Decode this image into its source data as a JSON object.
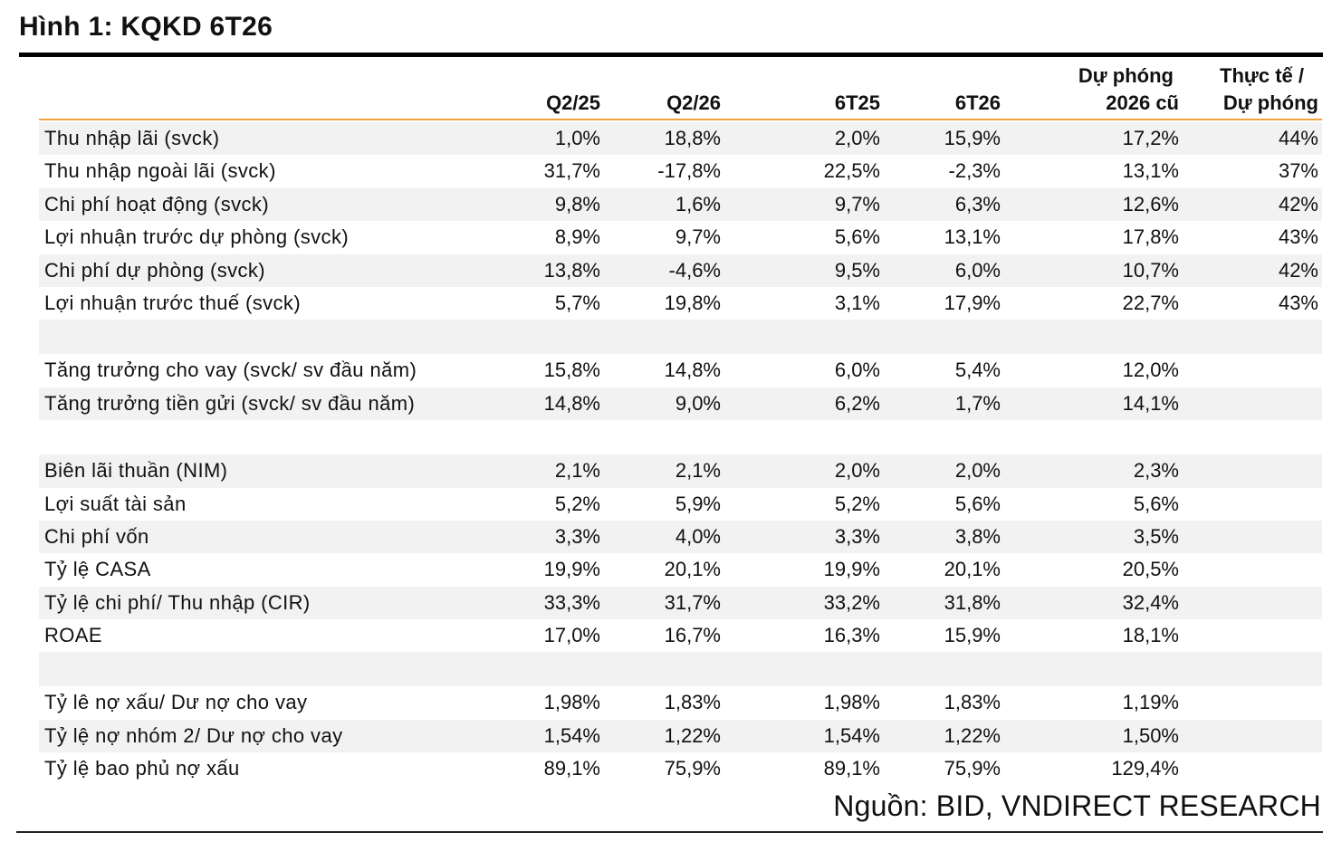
{
  "title": "Hình 1: KQKD 6T26",
  "headers": {
    "q225": "Q2/25",
    "q226": "Q2/26",
    "t625": "6T25",
    "t626": "6T26",
    "forecast_l1": "Dự phóng",
    "forecast_l2": "2026 cũ",
    "actual_l1": "Thực tế /",
    "actual_l2": "Dự phóng"
  },
  "rows": [
    {
      "label": "Thu nhập lãi (svck)",
      "v": [
        "1,0%",
        "18,8%",
        "2,0%",
        "15,9%",
        "17,2%",
        "44%"
      ]
    },
    {
      "label": "Thu nhập ngoài lãi (svck)",
      "v": [
        "31,7%",
        "-17,8%",
        "22,5%",
        "-2,3%",
        "13,1%",
        "37%"
      ]
    },
    {
      "label": "Chi phí hoạt động (svck)",
      "v": [
        "9,8%",
        "1,6%",
        "9,7%",
        "6,3%",
        "12,6%",
        "42%"
      ]
    },
    {
      "label": "Lợi nhuận trước dự phòng (svck)",
      "v": [
        "8,9%",
        "9,7%",
        "5,6%",
        "13,1%",
        "17,8%",
        "43%"
      ]
    },
    {
      "label": "Chi phí dự phòng (svck)",
      "v": [
        "13,8%",
        "-4,6%",
        "9,5%",
        "6,0%",
        "10,7%",
        "42%"
      ]
    },
    {
      "label": "Lợi nhuận trước thuế (svck)",
      "v": [
        "5,7%",
        "19,8%",
        "3,1%",
        "17,9%",
        "22,7%",
        "43%"
      ]
    },
    {
      "label": "",
      "v": [
        "",
        "",
        "",
        "",
        "",
        ""
      ]
    },
    {
      "label": "Tăng trưởng cho vay (svck/ sv đầu năm)",
      "v": [
        "15,8%",
        "14,8%",
        "6,0%",
        "5,4%",
        "12,0%",
        ""
      ]
    },
    {
      "label": "Tăng trưởng tiền gửi (svck/ sv đầu năm)",
      "v": [
        "14,8%",
        "9,0%",
        "6,2%",
        "1,7%",
        "14,1%",
        ""
      ]
    },
    {
      "label": "",
      "v": [
        "",
        "",
        "",
        "",
        "",
        ""
      ]
    },
    {
      "label": "Biên lãi thuần (NIM)",
      "v": [
        "2,1%",
        "2,1%",
        "2,0%",
        "2,0%",
        "2,3%",
        ""
      ]
    },
    {
      "label": "Lợi suất tài sản",
      "v": [
        "5,2%",
        "5,9%",
        "5,2%",
        "5,6%",
        "5,6%",
        ""
      ]
    },
    {
      "label": "Chi phí vốn",
      "v": [
        "3,3%",
        "4,0%",
        "3,3%",
        "3,8%",
        "3,5%",
        ""
      ]
    },
    {
      "label": "Tỷ lệ CASA",
      "v": [
        "19,9%",
        "20,1%",
        "19,9%",
        "20,1%",
        "20,5%",
        ""
      ]
    },
    {
      "label": "Tỷ lệ chi phí/ Thu nhập (CIR)",
      "v": [
        "33,3%",
        "31,7%",
        "33,2%",
        "31,8%",
        "32,4%",
        ""
      ]
    },
    {
      "label": "ROAE",
      "v": [
        "17,0%",
        "16,7%",
        "16,3%",
        "15,9%",
        "18,1%",
        ""
      ]
    },
    {
      "label": "",
      "v": [
        "",
        "",
        "",
        "",
        "",
        ""
      ]
    },
    {
      "label": "Tỷ lê nợ xấu/ Dư nợ cho vay",
      "v": [
        "1,98%",
        "1,83%",
        "1,98%",
        "1,83%",
        "1,19%",
        ""
      ]
    },
    {
      "label": "Tỷ lệ nợ nhóm 2/ Dư nợ cho vay",
      "v": [
        "1,54%",
        "1,22%",
        "1,54%",
        "1,22%",
        "1,50%",
        ""
      ]
    },
    {
      "label": "Tỷ lệ bao phủ nợ xấu",
      "v": [
        "89,1%",
        "75,9%",
        "89,1%",
        "75,9%",
        "129,4%",
        ""
      ]
    }
  ],
  "source": "Nguồn: BID, VNDIRECT RESEARCH",
  "colors": {
    "accent_line": "#f0a23c",
    "row_shade": "#f2f2f2"
  }
}
